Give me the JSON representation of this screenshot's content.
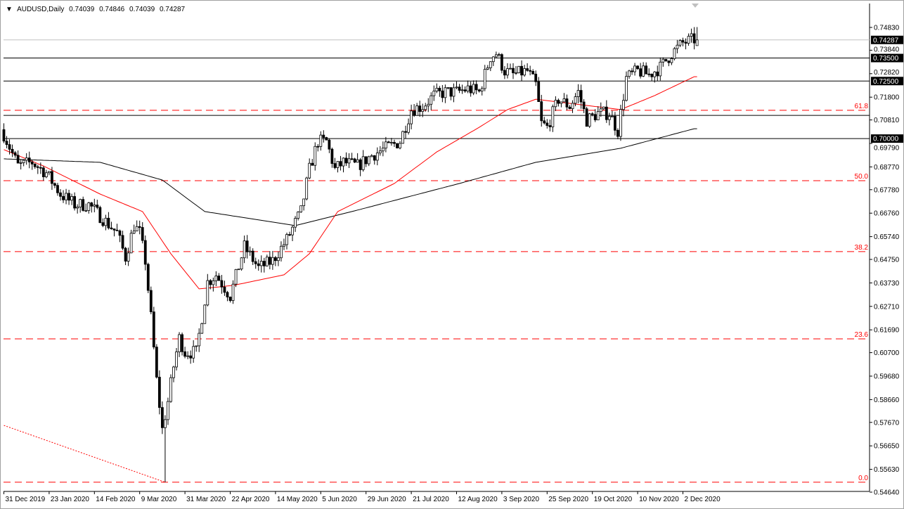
{
  "header": {
    "symbol": "AUDUSD,Daily",
    "open": "0.74039",
    "high": "0.74846",
    "low": "0.74039",
    "close": "0.74287"
  },
  "chart_data": {
    "type": "candlestick",
    "symbol": "AUDUSD",
    "timeframe": "Daily",
    "ylim": [
      0.5464,
      0.7483
    ],
    "y_ticks": [
      "0.74830",
      "0.73840",
      "0.72820",
      "0.71800",
      "0.70810",
      "0.69790",
      "0.68770",
      "0.67780",
      "0.66760",
      "0.65740",
      "0.64750",
      "0.63730",
      "0.62710",
      "0.61690",
      "0.60700",
      "0.59680",
      "0.58660",
      "0.57670",
      "0.56650",
      "0.55630",
      "0.54640"
    ],
    "x_ticks": [
      "31 Dec 2019",
      "23 Jan 2020",
      "14 Feb 2020",
      "9 Mar 2020",
      "31 Mar 2020",
      "22 Apr 2020",
      "14 May 2020",
      "5 Jun 2020",
      "29 Jun 2020",
      "21 Jul 2020",
      "12 Aug 2020",
      "3 Sep 2020",
      "25 Sep 2020",
      "19 Oct 2020",
      "10 Nov 2020",
      "2 Dec 2020"
    ],
    "bars_between_x_ticks": 16,
    "bar_count": 246,
    "close_anchors_bar_price": [
      [
        0,
        0.7019
      ],
      [
        5,
        0.6881
      ],
      [
        10,
        0.6897
      ],
      [
        15,
        0.6851
      ],
      [
        20,
        0.6759
      ],
      [
        25,
        0.6713
      ],
      [
        30,
        0.6713
      ],
      [
        35,
        0.6652
      ],
      [
        40,
        0.6591
      ],
      [
        43,
        0.6484
      ],
      [
        46,
        0.6622
      ],
      [
        48,
        0.6591
      ],
      [
        50,
        0.6469
      ],
      [
        52,
        0.6224
      ],
      [
        54,
        0.595
      ],
      [
        56,
        0.5736
      ],
      [
        58,
        0.5858
      ],
      [
        60,
        0.6011
      ],
      [
        62,
        0.6133
      ],
      [
        64,
        0.6072
      ],
      [
        68,
        0.6072
      ],
      [
        70,
        0.6224
      ],
      [
        72,
        0.6377
      ],
      [
        75,
        0.6408
      ],
      [
        80,
        0.6316
      ],
      [
        85,
        0.653
      ],
      [
        90,
        0.6438
      ],
      [
        95,
        0.6469
      ],
      [
        100,
        0.6561
      ],
      [
        105,
        0.6683
      ],
      [
        108,
        0.6866
      ],
      [
        111,
        0.6988
      ],
      [
        114,
        0.6988
      ],
      [
        117,
        0.6866
      ],
      [
        120,
        0.6897
      ],
      [
        125,
        0.6881
      ],
      [
        130,
        0.6927
      ],
      [
        135,
        0.6958
      ],
      [
        140,
        0.6988
      ],
      [
        144,
        0.7126
      ],
      [
        148,
        0.7141
      ],
      [
        152,
        0.7187
      ],
      [
        156,
        0.7202
      ],
      [
        160,
        0.7202
      ],
      [
        164,
        0.7217
      ],
      [
        168,
        0.7202
      ],
      [
        172,
        0.7355
      ],
      [
        174,
        0.737
      ],
      [
        177,
        0.7294
      ],
      [
        180,
        0.7278
      ],
      [
        185,
        0.7294
      ],
      [
        188,
        0.7233
      ],
      [
        190,
        0.7065
      ],
      [
        192,
        0.7049
      ],
      [
        196,
        0.7171
      ],
      [
        200,
        0.7141
      ],
      [
        203,
        0.7202
      ],
      [
        206,
        0.708
      ],
      [
        210,
        0.711
      ],
      [
        214,
        0.711
      ],
      [
        217,
        0.7034
      ],
      [
        220,
        0.7263
      ],
      [
        224,
        0.7294
      ],
      [
        228,
        0.7278
      ],
      [
        232,
        0.7309
      ],
      [
        236,
        0.737
      ],
      [
        240,
        0.7416
      ],
      [
        244,
        0.7431
      ]
    ],
    "last_bar": {
      "open": 0.74039,
      "high": 0.74846,
      "low": 0.74039,
      "close": 0.74287
    },
    "year_low": 0.5507,
    "ma_slow_anchors": [
      [
        0,
        0.6912
      ],
      [
        34,
        0.6897
      ],
      [
        56,
        0.682
      ],
      [
        71,
        0.6683
      ],
      [
        103,
        0.6622
      ],
      [
        123,
        0.6683
      ],
      [
        161,
        0.6805
      ],
      [
        188,
        0.6897
      ],
      [
        218,
        0.6958
      ],
      [
        244,
        0.7043
      ]
    ],
    "ma_fast_anchors": [
      [
        0,
        0.6952
      ],
      [
        14,
        0.6881
      ],
      [
        34,
        0.6759
      ],
      [
        49,
        0.6683
      ],
      [
        59,
        0.65
      ],
      [
        69,
        0.6347
      ],
      [
        81,
        0.6362
      ],
      [
        99,
        0.6408
      ],
      [
        108,
        0.65
      ],
      [
        118,
        0.6683
      ],
      [
        138,
        0.6805
      ],
      [
        153,
        0.6942
      ],
      [
        168,
        0.7049
      ],
      [
        178,
        0.7126
      ],
      [
        188,
        0.7171
      ],
      [
        198,
        0.7156
      ],
      [
        208,
        0.7141
      ],
      [
        218,
        0.7126
      ],
      [
        230,
        0.7187
      ],
      [
        244,
        0.7269
      ]
    ],
    "ma_fast_color": "#ff0000",
    "ma_slow_color": "#000000",
    "horizontal_levels": [
      {
        "price": 0.735,
        "label": "0.73500"
      },
      {
        "price": 0.725,
        "label": "0.72500"
      },
      {
        "price": 0.7101,
        "label": ""
      },
      {
        "price": 0.7,
        "label": "0.70000"
      }
    ],
    "current_price": {
      "price": 0.74287,
      "label": "0.74287"
    },
    "fibonacci": {
      "color": "#ff0000",
      "levels": [
        {
          "label": "61.8",
          "price": 0.7123
        },
        {
          "label": "50.0",
          "price": 0.6817
        },
        {
          "label": "38.2",
          "price": 0.6509
        },
        {
          "label": "23.6",
          "price": 0.613
        },
        {
          "label": "0.0",
          "price": 0.5507
        }
      ]
    },
    "trendline": {
      "color": "#ff0000",
      "style": "dotted",
      "from": [
        0,
        0.5754
      ],
      "to": [
        57,
        0.5507
      ]
    }
  }
}
